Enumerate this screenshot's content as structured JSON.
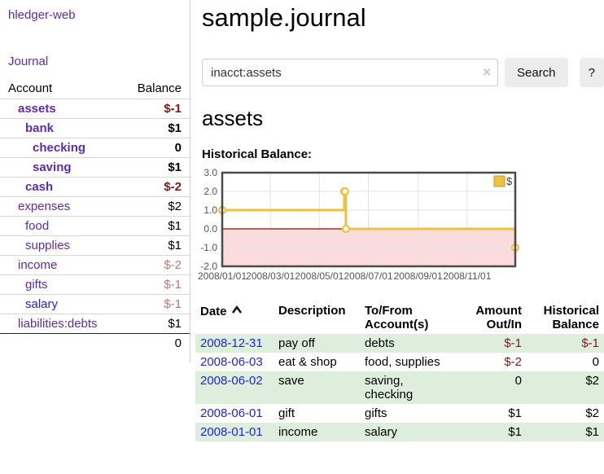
{
  "app": {
    "name": "hledger-web"
  },
  "colors": {
    "link_purple": "#5d2ca8",
    "link_blue": "#2222dd",
    "negative_strong": "#7d1a1a",
    "negative_faded": "#bf7575",
    "row_stripe_green": "#ddeedd",
    "chart_line_gold": "#edc240",
    "chart_negative_region": "#fbdcdc",
    "chart_zero_line": "#a00000"
  },
  "sidebar": {
    "journal_link": "Journal",
    "accounts_table": {
      "account_header": "Account",
      "balance_header": "Balance",
      "rows": [
        {
          "account": "assets",
          "balance": "$-1",
          "level": 1,
          "bold": true,
          "negative": "strong"
        },
        {
          "account": "bank",
          "balance": "$1",
          "level": 2,
          "bold": true,
          "negative": "none"
        },
        {
          "account": "checking",
          "balance": "0",
          "level": 3,
          "bold": true,
          "negative": "none"
        },
        {
          "account": "saving",
          "balance": "$1",
          "level": 3,
          "bold": true,
          "negative": "none"
        },
        {
          "account": "cash",
          "balance": "$-2",
          "level": 2,
          "bold": true,
          "negative": "strong"
        },
        {
          "account": "expenses",
          "balance": "$2",
          "level": 1,
          "bold": false,
          "negative": "none"
        },
        {
          "account": "food",
          "balance": "$1",
          "level": 2,
          "bold": false,
          "negative": "none"
        },
        {
          "account": "supplies",
          "balance": "$1",
          "level": 2,
          "bold": false,
          "negative": "none"
        },
        {
          "account": "income",
          "balance": "$-2",
          "level": 1,
          "bold": false,
          "negative": "faded"
        },
        {
          "account": "gifts",
          "balance": "$-1",
          "level": 2,
          "bold": false,
          "negative": "faded"
        },
        {
          "account": "salary",
          "balance": "$-1",
          "level": 2,
          "bold": false,
          "negative": "faded",
          "link_color": "blue"
        },
        {
          "account": "liabilities:debts",
          "balance": "$1",
          "level": 1,
          "bold": false,
          "negative": "none"
        }
      ],
      "total": "0"
    }
  },
  "main": {
    "title": "sample.journal",
    "search": {
      "value": "inacct:assets",
      "clear_icon": "×",
      "search_button": "Search",
      "help_button": "?"
    },
    "account_heading": "assets",
    "chart_label": "Historical Balance:"
  },
  "chart_data": {
    "type": "line",
    "step": true,
    "title": "Historical Balance:",
    "legend": [
      {
        "label": "$",
        "color": "#edc240"
      }
    ],
    "legend_position": "top-right",
    "x_range": [
      "2008-01-01",
      "2008-12-31"
    ],
    "ylim": [
      -2,
      3
    ],
    "y_ticks": [
      3,
      2,
      1,
      0,
      -1,
      -2
    ],
    "x_ticks": [
      "2008/01/01",
      "2008/03/01",
      "2008/05/01",
      "2008/07/01",
      "2008/09/01",
      "2008/11/01"
    ],
    "grid": true,
    "negative_region": true,
    "series": [
      {
        "name": "$",
        "color": "#edc240",
        "points": [
          {
            "date": "2008-01-01",
            "value": 1
          },
          {
            "date": "2008-06-01",
            "value": 2
          },
          {
            "date": "2008-06-02",
            "value": 2
          },
          {
            "date": "2008-06-03",
            "value": 0
          },
          {
            "date": "2008-12-31",
            "value": -1
          }
        ]
      }
    ]
  },
  "transactions": {
    "headers": {
      "date": "Date",
      "description": "Description",
      "accounts": "To/From Account(s)",
      "amount": "Amount Out/In",
      "balance": "Historical Balance"
    },
    "sort": {
      "column": "date",
      "direction": "ascending"
    },
    "rows": [
      {
        "date": "2008-12-31",
        "description": "pay off",
        "accounts": "debts",
        "amount": "$-1",
        "balance": "$-1"
      },
      {
        "date": "2008-06-03",
        "description": "eat & shop",
        "accounts": "food, supplies",
        "amount": "$-2",
        "balance": "0"
      },
      {
        "date": "2008-06-02",
        "description": "save",
        "accounts": "saving, checking",
        "amount": "0",
        "balance": "$2"
      },
      {
        "date": "2008-06-01",
        "description": "gift",
        "accounts": "gifts",
        "amount": "$1",
        "balance": "$2"
      },
      {
        "date": "2008-01-01",
        "description": "income",
        "accounts": "salary",
        "amount": "$1",
        "balance": "$1"
      }
    ]
  }
}
